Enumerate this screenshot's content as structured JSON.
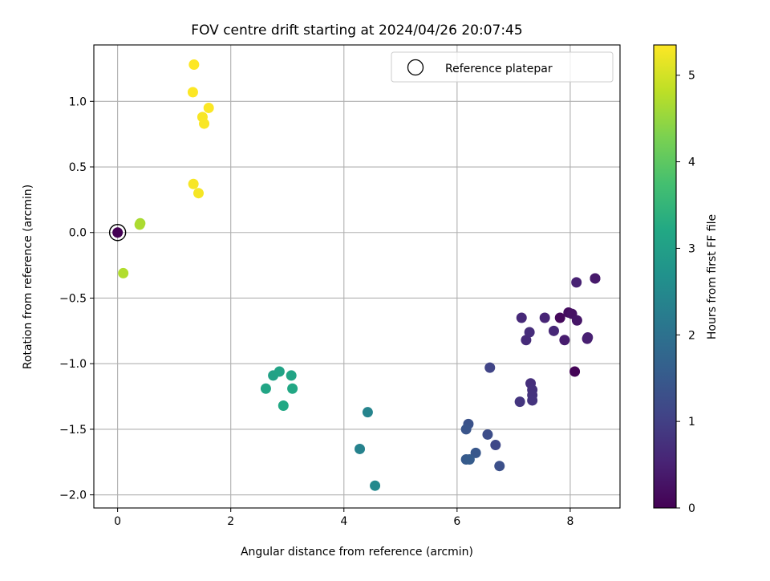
{
  "chart_data": {
    "type": "scatter",
    "title": "FOV centre drift starting at 2024/04/26 20:07:45",
    "xlabel": "Angular distance from reference (arcmin)",
    "ylabel": "Rotation from reference (arcmin)",
    "xlim": [
      -0.42,
      8.88
    ],
    "ylim": [
      -2.1,
      1.43
    ],
    "x_ticks": [
      0,
      2,
      4,
      6,
      8
    ],
    "x_tick_labels": [
      "0",
      "2",
      "4",
      "6",
      "8"
    ],
    "y_ticks": [
      -2.0,
      -1.5,
      -1.0,
      -0.5,
      0.0,
      0.5,
      1.0
    ],
    "y_tick_labels": [
      "−2.0",
      "−1.5",
      "−1.0",
      "−0.5",
      "0.0",
      "0.5",
      "1.0"
    ],
    "grid": true,
    "legend": {
      "placement": "top-right",
      "entries": [
        "Reference platepar"
      ]
    },
    "colorbar": {
      "label": "Hours from first FF file",
      "colormap": "viridis",
      "range": [
        0,
        5.35
      ],
      "ticks": [
        0,
        1,
        2,
        3,
        4,
        5
      ],
      "tick_labels": [
        "0",
        "1",
        "2",
        "3",
        "4",
        "5"
      ]
    },
    "reference_point": {
      "x": 0.0,
      "y": 0.0
    },
    "points": [
      {
        "x": 0.0,
        "y": 0.0,
        "c": 0.0
      },
      {
        "x": 8.08,
        "y": -1.06,
        "c": 0.05
      },
      {
        "x": 7.82,
        "y": -0.65,
        "c": 0.12
      },
      {
        "x": 7.97,
        "y": -0.61,
        "c": 0.18
      },
      {
        "x": 8.03,
        "y": -0.62,
        "c": 0.25
      },
      {
        "x": 8.12,
        "y": -0.67,
        "c": 0.3
      },
      {
        "x": 8.44,
        "y": -0.35,
        "c": 0.35
      },
      {
        "x": 8.44,
        "y": -0.35,
        "c": 0.38
      },
      {
        "x": 7.9,
        "y": -0.82,
        "c": 0.42
      },
      {
        "x": 8.3,
        "y": -0.81,
        "c": 0.45
      },
      {
        "x": 8.31,
        "y": -0.8,
        "c": 0.48
      },
      {
        "x": 8.11,
        "y": -0.38,
        "c": 0.5
      },
      {
        "x": 7.55,
        "y": -0.65,
        "c": 0.55
      },
      {
        "x": 7.71,
        "y": -0.75,
        "c": 0.6
      },
      {
        "x": 7.14,
        "y": -0.65,
        "c": 0.62
      },
      {
        "x": 7.22,
        "y": -0.82,
        "c": 0.65
      },
      {
        "x": 7.28,
        "y": -0.76,
        "c": 0.68
      },
      {
        "x": 7.3,
        "y": -1.15,
        "c": 0.72
      },
      {
        "x": 7.33,
        "y": -1.2,
        "c": 0.75
      },
      {
        "x": 7.33,
        "y": -1.24,
        "c": 0.78
      },
      {
        "x": 7.33,
        "y": -1.28,
        "c": 0.8
      },
      {
        "x": 7.11,
        "y": -1.29,
        "c": 0.82
      },
      {
        "x": 6.58,
        "y": -1.03,
        "c": 1.08
      },
      {
        "x": 6.68,
        "y": -1.62,
        "c": 1.15
      },
      {
        "x": 6.54,
        "y": -1.54,
        "c": 1.25
      },
      {
        "x": 6.75,
        "y": -1.78,
        "c": 1.3
      },
      {
        "x": 6.2,
        "y": -1.46,
        "c": 1.35
      },
      {
        "x": 6.16,
        "y": -1.5,
        "c": 1.4
      },
      {
        "x": 6.33,
        "y": -1.68,
        "c": 1.45
      },
      {
        "x": 6.16,
        "y": -1.73,
        "c": 1.5
      },
      {
        "x": 6.22,
        "y": -1.73,
        "c": 1.55
      },
      {
        "x": 4.28,
        "y": -1.65,
        "c": 2.35
      },
      {
        "x": 4.42,
        "y": -1.37,
        "c": 2.4
      },
      {
        "x": 4.55,
        "y": -1.93,
        "c": 2.5
      },
      {
        "x": 2.75,
        "y": -1.09,
        "c": 3.05
      },
      {
        "x": 2.86,
        "y": -1.06,
        "c": 3.1
      },
      {
        "x": 3.07,
        "y": -1.09,
        "c": 3.12
      },
      {
        "x": 2.62,
        "y": -1.19,
        "c": 3.15
      },
      {
        "x": 3.09,
        "y": -1.19,
        "c": 3.18
      },
      {
        "x": 2.93,
        "y": -1.32,
        "c": 3.2
      },
      {
        "x": 0.4,
        "y": 0.07,
        "c": 4.65
      },
      {
        "x": 0.39,
        "y": 0.06,
        "c": 4.68
      },
      {
        "x": 0.1,
        "y": -0.31,
        "c": 4.72
      },
      {
        "x": 1.43,
        "y": 0.3,
        "c": 5.28
      },
      {
        "x": 1.34,
        "y": 0.37,
        "c": 5.3
      },
      {
        "x": 1.5,
        "y": 0.88,
        "c": 5.31
      },
      {
        "x": 1.53,
        "y": 0.83,
        "c": 5.32
      },
      {
        "x": 1.61,
        "y": 0.95,
        "c": 5.33
      },
      {
        "x": 1.33,
        "y": 1.07,
        "c": 5.34
      },
      {
        "x": 1.35,
        "y": 1.28,
        "c": 5.35
      }
    ]
  }
}
